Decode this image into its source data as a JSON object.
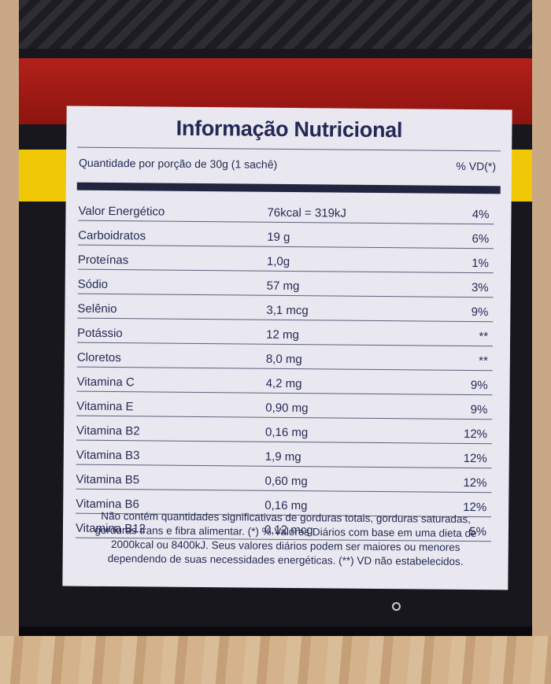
{
  "panel": {
    "title": "Informação Nutricional",
    "portion_label": "Quantidade por porção de 30g (1 sachê)",
    "vd_header": "% VD(*)",
    "rows": [
      {
        "name": "Valor Energético",
        "qty": "76kcal = 319kJ",
        "vd": "4%"
      },
      {
        "name": "Carboidratos",
        "qty": "19 g",
        "vd": "6%"
      },
      {
        "name": "Proteínas",
        "qty": "1,0g",
        "vd": "1%"
      },
      {
        "name": "Sódio",
        "qty": "57 mg",
        "vd": "3%"
      },
      {
        "name": "Selênio",
        "qty": "3,1 mcg",
        "vd": "9%"
      },
      {
        "name": "Potássio",
        "qty": "12 mg",
        "vd": "**"
      },
      {
        "name": "Cloretos",
        "qty": "8,0 mg",
        "vd": "**"
      },
      {
        "name": "Vitamina C",
        "qty": "4,2 mg",
        "vd": "9%"
      },
      {
        "name": "Vitamina E",
        "qty": "0,90 mg",
        "vd": "9%"
      },
      {
        "name": "Vitamina B2",
        "qty": "0,16 mg",
        "vd": "12%"
      },
      {
        "name": "Vitamina B3",
        "qty": "1,9 mg",
        "vd": "12%"
      },
      {
        "name": "Vitamina B5",
        "qty": "0,60 mg",
        "vd": "12%"
      },
      {
        "name": "Vitamina B6",
        "qty": "0,16 mg",
        "vd": "12%"
      },
      {
        "name": "Vitamina B12",
        "qty": "0,12 mcg",
        "vd": "5%"
      }
    ],
    "footnote": "Não contém quantidades significativas de gorduras totais, gorduras saturadas, gorduras trans e fibra alimentar. (*) % Valores Diários com base em uma dieta de 2000kcal ou 8400kJ. Seus valores diários podem ser maiores ou menores dependendo de suas necessidades energéticas. (**) VD não estabelecidos."
  },
  "colors": {
    "panel_background": "#e9e8f0",
    "text": "#262a55",
    "red_band": "#b3201a",
    "yellow_band": "#f0c808",
    "box": "#17171d"
  }
}
